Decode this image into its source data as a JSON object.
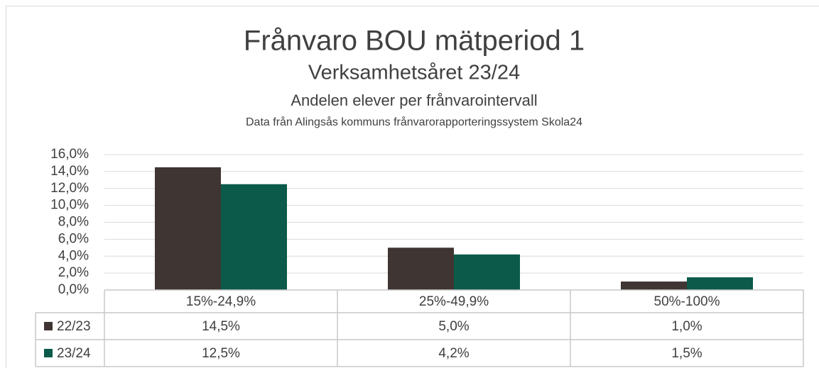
{
  "chart_data": {
    "type": "bar",
    "title": "Frånvaro BOU mätperiod 1",
    "subtitles": [
      "Verksamhetsåret 23/24",
      "Andelen elever per frånvarointervall",
      "Data från Alingsås kommuns frånvarorapporteringssystem Skola24"
    ],
    "categories": [
      "15%-24,9%",
      "25%-49,9%",
      "50%-100%"
    ],
    "series": [
      {
        "name": "22/23",
        "color": "#3f3533",
        "values": [
          14.5,
          5.0,
          1.0
        ],
        "value_labels": [
          "14,5%",
          "5,0%",
          "1,0%"
        ]
      },
      {
        "name": "23/24",
        "color": "#0b5a4a",
        "values": [
          12.5,
          4.2,
          1.5
        ],
        "value_labels": [
          "12,5%",
          "4,2%",
          "1,5%"
        ]
      }
    ],
    "ylim": [
      0,
      16
    ],
    "yticks": [
      {
        "value": 0,
        "label": "0,0%"
      },
      {
        "value": 2,
        "label": "2,0%"
      },
      {
        "value": 4,
        "label": "4,0%"
      },
      {
        "value": 6,
        "label": "6,0%"
      },
      {
        "value": 8,
        "label": "8,0%"
      },
      {
        "value": 10,
        "label": "10,0%"
      },
      {
        "value": 12,
        "label": "12,0%"
      },
      {
        "value": 14,
        "label": "14,0%"
      },
      {
        "value": 16,
        "label": "16,0%"
      }
    ],
    "grid": true
  }
}
